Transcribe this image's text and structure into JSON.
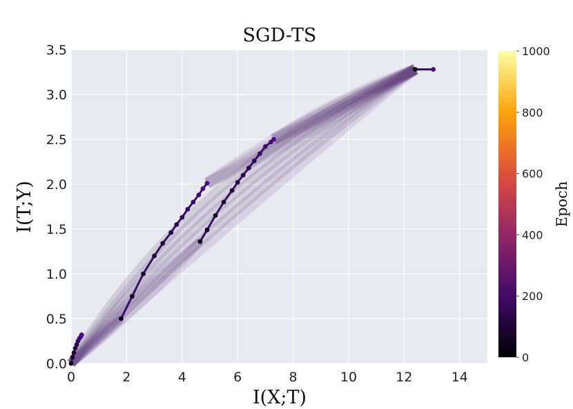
{
  "chart_data": {
    "type": "line",
    "title": "SGD-TS",
    "xlabel": "I(X;T)",
    "ylabel": "I(T;Y)",
    "xlim": [
      0,
      15
    ],
    "ylim": [
      0,
      3.5
    ],
    "xticks": [
      0,
      2,
      4,
      6,
      8,
      10,
      12,
      14
    ],
    "xtick_labels": [
      "0",
      "2",
      "4",
      "6",
      "8",
      "10",
      "12",
      "14"
    ],
    "yticks": [
      0,
      0.5,
      1.0,
      1.5,
      2.0,
      2.5,
      3.0,
      3.5
    ],
    "ytick_labels": [
      "0.0",
      "0.5",
      "1.0",
      "1.5",
      "2.0",
      "2.5",
      "3.0",
      "3.5"
    ],
    "grid": true,
    "colorbar": {
      "label": "Epoch",
      "range": [
        0,
        1000
      ],
      "ticks": [
        0,
        200,
        400,
        600,
        800,
        1000
      ],
      "tick_labels": [
        "0",
        "200",
        "400",
        "600",
        "800",
        "1000"
      ],
      "colors": [
        "#000004",
        "#420a68",
        "#932667",
        "#dd513a",
        "#fca50a",
        "#fcffa4"
      ],
      "colormap": "inferno"
    },
    "series": [
      {
        "x": [
          0.0,
          0.05,
          0.1,
          0.15,
          0.2,
          0.25,
          0.3,
          0.35,
          0.38
        ],
        "y": [
          0.0,
          0.07,
          0.12,
          0.17,
          0.21,
          0.25,
          0.28,
          0.3,
          0.32
        ]
      },
      {
        "x": [
          1.8,
          2.2,
          2.6,
          3.0,
          3.3,
          3.6,
          3.8,
          4.0,
          4.2,
          4.4,
          4.6,
          4.75,
          4.9
        ],
        "y": [
          0.5,
          0.75,
          1.0,
          1.2,
          1.34,
          1.46,
          1.55,
          1.63,
          1.72,
          1.8,
          1.88,
          1.95,
          2.01
        ]
      },
      {
        "x": [
          4.65,
          4.9,
          5.2,
          5.5,
          5.8,
          6.0,
          6.2,
          6.4,
          6.6,
          6.8,
          7.0,
          7.2,
          7.3
        ],
        "y": [
          1.36,
          1.49,
          1.65,
          1.8,
          1.93,
          2.02,
          2.1,
          2.18,
          2.26,
          2.34,
          2.42,
          2.47,
          2.5
        ]
      },
      {
        "x": [
          12.4,
          13.05
        ],
        "y": [
          3.28,
          3.28
        ]
      }
    ]
  }
}
